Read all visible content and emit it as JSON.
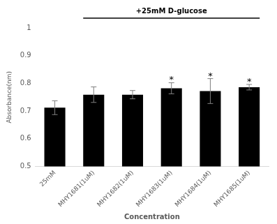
{
  "chart_data": {
    "type": "bar",
    "categories": [
      "25mM",
      "MHY1681(1uM)",
      "MHY1682(1uM)",
      "MHY1683(1uM)",
      "MHY1684(1uM)",
      "MHY1685(1uM)"
    ],
    "values": [
      0.712,
      0.759,
      0.759,
      0.782,
      0.772,
      0.786
    ],
    "errors": [
      0.025,
      0.028,
      0.015,
      0.02,
      0.045,
      0.01
    ],
    "significance": [
      null,
      null,
      null,
      "*",
      "*",
      "*"
    ],
    "bracket": {
      "text": "+25mM D-glucose",
      "from": "MHY1681(1uM)",
      "to": "MHY1685(1uM)"
    },
    "color": "#000000",
    "x_label": "Concentration",
    "y_label": "Absorbance(nm)",
    "ylim": [
      0.5,
      1
    ],
    "yticks": [
      0.5,
      0.6,
      0.7,
      0.8,
      0.9,
      1
    ],
    "grid": false
  }
}
